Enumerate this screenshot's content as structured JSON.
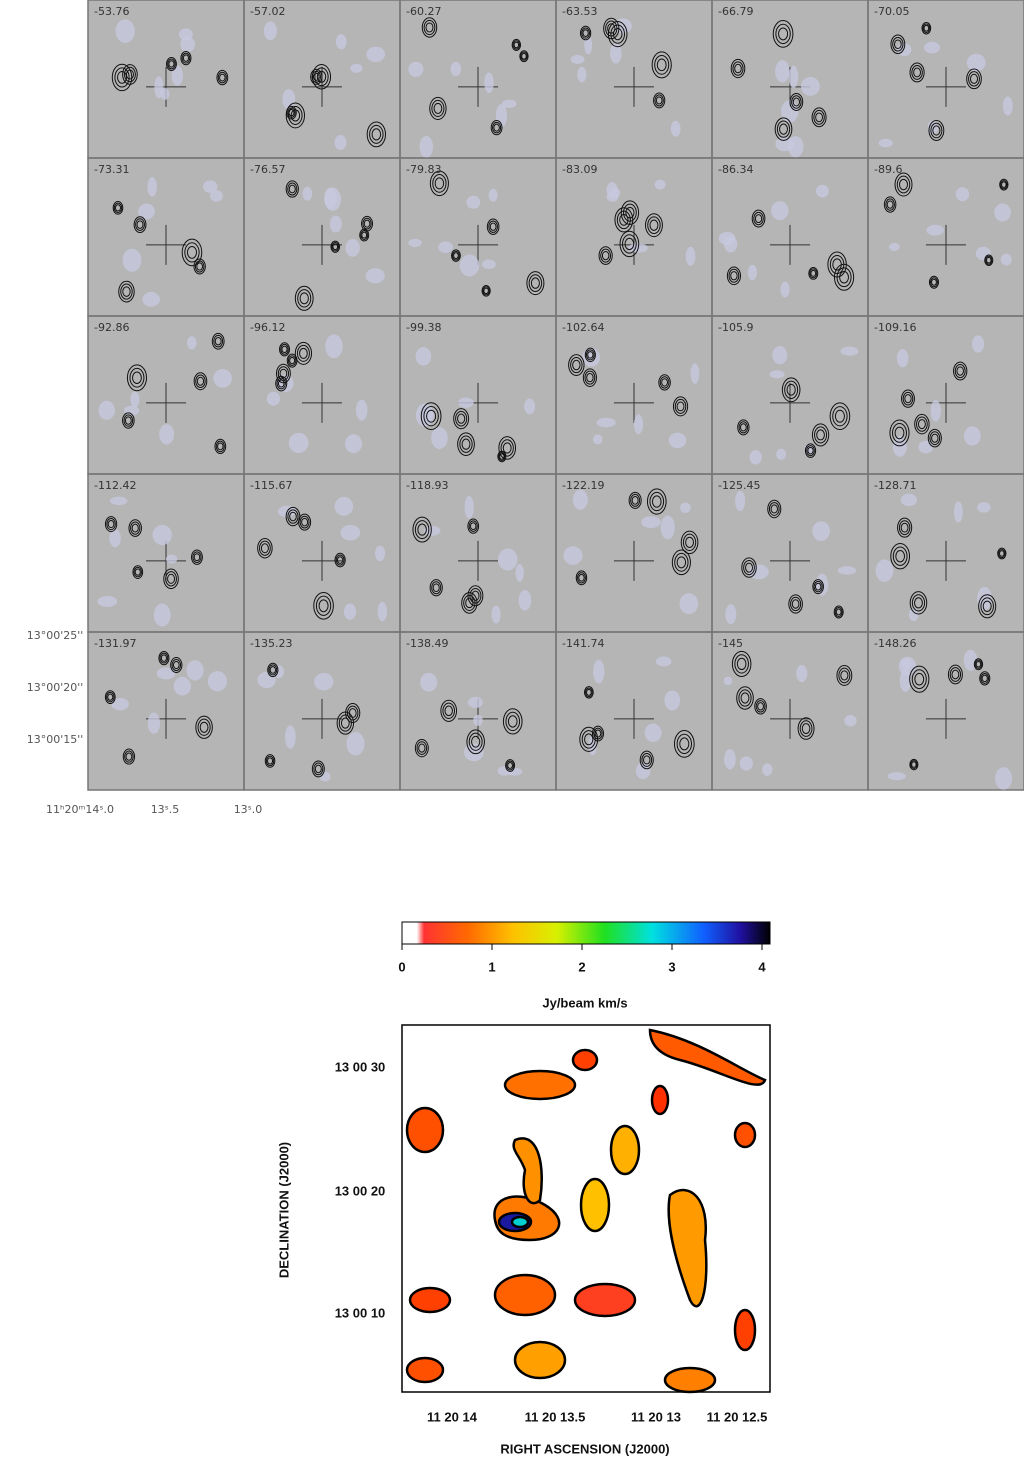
{
  "channel_maps": {
    "labels": [
      "-53.76",
      "-57.02",
      "-60.27",
      "-63.53",
      "-66.79",
      "-70.05",
      "-73.31",
      "-76.57",
      "-79.83",
      "-83.09",
      "-86.34",
      "-89.6",
      "-92.86",
      "-96.12",
      "-99.38",
      "-102.64",
      "-105.9",
      "-109.16",
      "-112.42",
      "-115.67",
      "-118.93",
      "-122.19",
      "-125.45",
      "-128.71",
      "-131.97",
      "-135.23",
      "-138.49",
      "-141.74",
      "-145",
      "-148.26"
    ],
    "yticks": [
      "13°00'25''",
      "13°00'20''",
      "13°00'15''"
    ],
    "xticks": [
      "11ʰ20ᵐ14ˢ.0",
      "13ˢ.5",
      "13ˢ.0"
    ]
  },
  "moment_map": {
    "colorbar": {
      "ticks": [
        0,
        1,
        2,
        3,
        4
      ],
      "label": "Jy/beam km/s"
    },
    "ylabel": "DECLINATION  (J2000)",
    "xlabel": "RIGHT ASCENSION  (J2000)",
    "yticks": [
      "13 00 30",
      "13 00 20",
      "13 00 10"
    ],
    "xticks": [
      "11 20 14",
      "11 20 13.5",
      "11 20 13",
      "11 20 12.5"
    ]
  }
}
